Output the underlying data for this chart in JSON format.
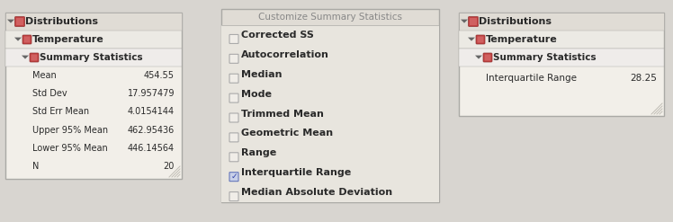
{
  "bg_color": "#d8d5d0",
  "panel_bg": "#f2efe9",
  "panel_header_bg": "#e0dcd5",
  "panel_sub1_bg": "#eceae4",
  "panel_sub2_bg": "#efecea",
  "border_color": "#aaa9a5",
  "text_color": "#2a2a2a",
  "text_color_light": "#888888",
  "red_icon_color": "#b84040",
  "arrow_color": "#666666",
  "checkbox_bg": "#e8e6e0",
  "checkbox_checked_bg": "#c8d0e8",
  "checkbox_checked_border": "#6677bb",
  "checkmark_color": "#3344aa",
  "resize_color": "#c0bdb5",
  "panel1": {
    "title": "Distributions",
    "sub1": "Temperature",
    "sub2": "Summary Statistics",
    "rows": [
      [
        "Mean",
        "454.55"
      ],
      [
        "Std Dev",
        "17.957479"
      ],
      [
        "Std Err Mean",
        "4.0154144"
      ],
      [
        "Upper 95% Mean",
        "462.95436"
      ],
      [
        "Lower 95% Mean",
        "446.14564"
      ],
      [
        "N",
        "20"
      ]
    ]
  },
  "panel2": {
    "title": "Customize Summary Statistics",
    "items": [
      [
        "Corrected SS",
        false
      ],
      [
        "Autocorrelation",
        false
      ],
      [
        "Median",
        false
      ],
      [
        "Mode",
        false
      ],
      [
        "Trimmed Mean",
        false
      ],
      [
        "Geometric Mean",
        false
      ],
      [
        "Range",
        false
      ],
      [
        "Interquartile Range",
        true
      ],
      [
        "Median Absolute Deviation",
        false
      ]
    ]
  },
  "panel3": {
    "title": "Distributions",
    "sub1": "Temperature",
    "sub2": "Summary Statistics",
    "rows": [
      [
        "Interquartile Range",
        "28.25"
      ]
    ]
  }
}
